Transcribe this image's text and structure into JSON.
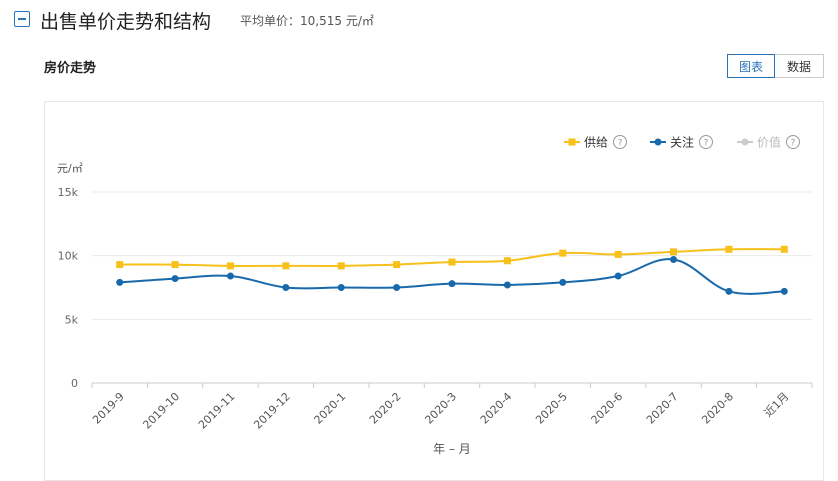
{
  "header": {
    "title": "出售单价走势和结构",
    "avg_label": "平均单价：",
    "avg_value": "10,515 元/㎡"
  },
  "panel": {
    "subtitle": "房价走势",
    "buttons": {
      "chart": "图表",
      "data": "数据"
    }
  },
  "legend": [
    {
      "label": "供给",
      "help": "?",
      "color": "#f7c01a",
      "active": true
    },
    {
      "label": "关注",
      "help": "?",
      "color": "#1869ab",
      "active": true
    },
    {
      "label": "价值",
      "help": "?",
      "color": "#cccccc",
      "active": false
    }
  ],
  "chart_data": {
    "type": "line",
    "ylabel": "元/㎡",
    "xlabel": "年 – 月",
    "categories": [
      "2019-9",
      "2019-10",
      "2019-11",
      "2019-12",
      "2020-1",
      "2020-2",
      "2020-3",
      "2020-4",
      "2020-5",
      "2020-6",
      "2020-7",
      "2020-8",
      "近1月"
    ],
    "ylim": [
      0,
      15000
    ],
    "yticks": [
      0,
      5000,
      10000,
      15000
    ],
    "ytick_labels": [
      "0",
      "5k",
      "10k",
      "15k"
    ],
    "grid": true,
    "legend_position": "top-right",
    "series": [
      {
        "name": "供给",
        "color": "#f7c01a",
        "marker": "square",
        "values": [
          9300,
          9300,
          9200,
          9200,
          9200,
          9300,
          9500,
          9600,
          10200,
          10100,
          10300,
          10500,
          10500
        ]
      },
      {
        "name": "关注",
        "color": "#1869ab",
        "marker": "circle",
        "values": [
          7900,
          8200,
          8400,
          7500,
          7500,
          7500,
          7800,
          7700,
          7900,
          8400,
          9700,
          7200,
          7200
        ]
      }
    ]
  }
}
